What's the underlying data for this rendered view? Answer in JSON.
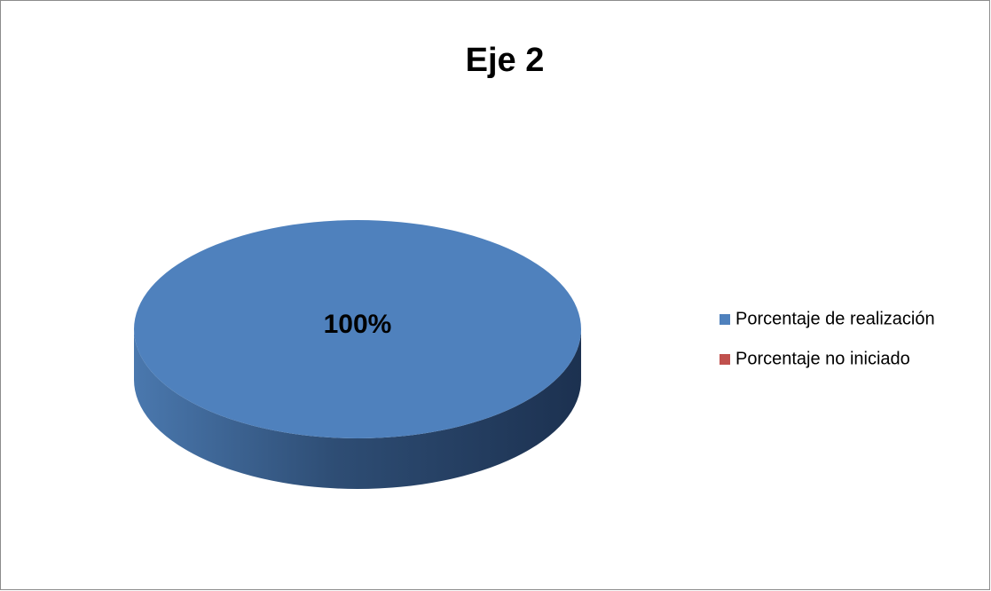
{
  "chart_data": {
    "type": "pie",
    "title": "Eje 2",
    "categories": [
      "Porcentaje de realización",
      "Porcentaje no iniciado"
    ],
    "values": [
      100,
      0
    ],
    "value_labels": [
      "100%",
      null
    ],
    "colors": [
      "#4f81bd",
      "#c0504d"
    ],
    "legend": "right"
  }
}
